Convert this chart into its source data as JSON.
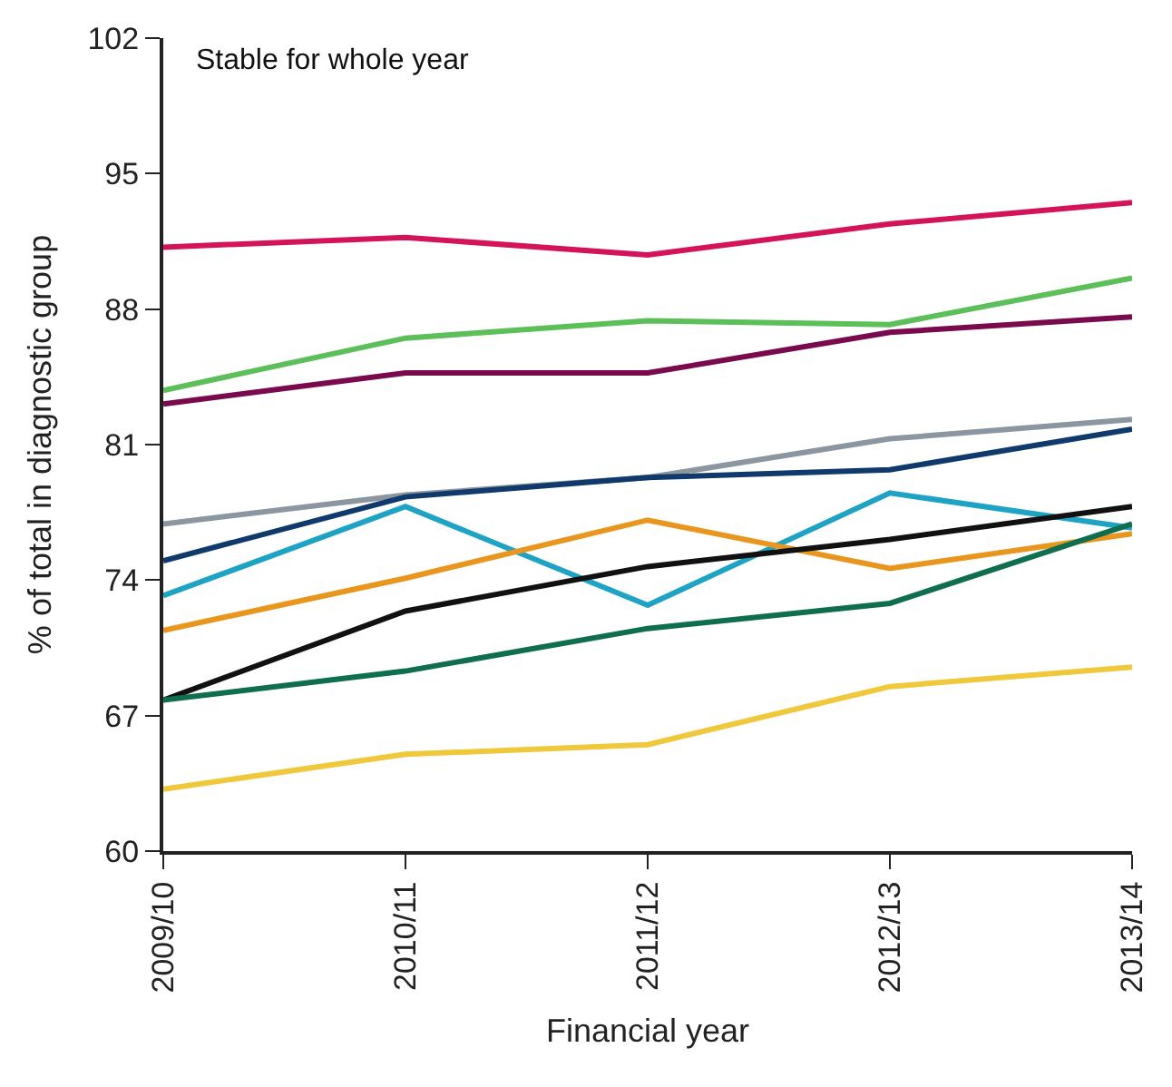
{
  "chart_data": {
    "type": "line",
    "title": "Stable for whole year",
    "xlabel": "Financial year",
    "ylabel": "% of total in diagnostic group",
    "categories": [
      "2009/10",
      "2010/11",
      "2011/12",
      "2012/13",
      "2013/14"
    ],
    "series": [
      {
        "color": "#d4145a",
        "values": [
          91.2,
          91.7,
          90.8,
          92.4,
          93.5
        ]
      },
      {
        "color": "#5cbf5a",
        "values": [
          83.8,
          86.5,
          87.4,
          87.2,
          89.6
        ]
      },
      {
        "color": "#7a0a4e",
        "values": [
          83.1,
          84.7,
          84.7,
          86.8,
          87.6
        ]
      },
      {
        "color": "#8c96a0",
        "values": [
          76.9,
          78.4,
          79.3,
          81.3,
          82.3
        ]
      },
      {
        "color": "#0f3a6b",
        "values": [
          75.0,
          78.3,
          79.3,
          79.7,
          81.8
        ]
      },
      {
        "color": "#1fa3c4",
        "values": [
          73.2,
          77.8,
          72.7,
          78.5,
          76.7
        ]
      },
      {
        "color": "#e8961e",
        "values": [
          71.4,
          74.1,
          77.1,
          74.6,
          76.4
        ]
      },
      {
        "color": "#111111",
        "values": [
          67.8,
          72.4,
          74.7,
          76.1,
          77.8
        ]
      },
      {
        "color": "#0f6e50",
        "values": [
          67.8,
          69.3,
          71.5,
          72.8,
          76.9
        ]
      },
      {
        "color": "#f0c83c",
        "values": [
          63.2,
          65.0,
          65.5,
          68.5,
          69.5
        ]
      }
    ],
    "ylim": [
      60,
      102
    ],
    "yticks": [
      60,
      67,
      74,
      81,
      88,
      95,
      102
    ],
    "marker": "none",
    "line_style": "solid"
  }
}
